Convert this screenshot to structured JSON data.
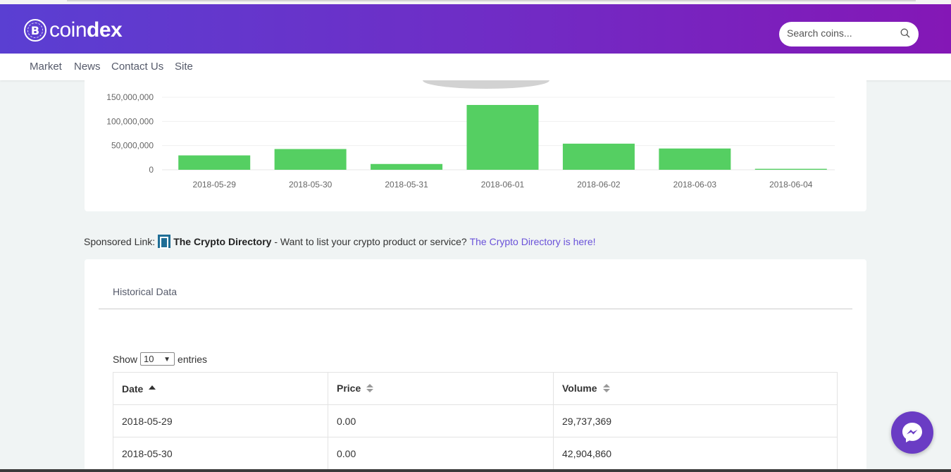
{
  "brand": {
    "logo_symbol": "B",
    "name_light": "coin",
    "name_bold": "dex"
  },
  "search": {
    "placeholder": "Search coins...",
    "icon": "search-icon"
  },
  "nav": {
    "items": [
      "Market",
      "News",
      "Contact Us",
      "Site"
    ]
  },
  "chart_data": {
    "type": "bar",
    "categories": [
      "2018-05-29",
      "2018-05-30",
      "2018-05-31",
      "2018-06-01",
      "2018-06-02",
      "2018-06-03",
      "2018-06-04"
    ],
    "values": [
      29737369,
      42904860,
      12000000,
      134000000,
      54000000,
      44000000,
      2000000
    ],
    "y_ticks": [
      0,
      50000000,
      100000000,
      150000000
    ],
    "y_tick_labels": [
      "0",
      "50,000,000",
      "100,000,000",
      "150,000,000"
    ],
    "ylim": [
      0,
      150000000
    ],
    "title": "",
    "xlabel": "",
    "ylabel": "",
    "bar_color": "#55cf62",
    "grid": true
  },
  "sponsor": {
    "prefix": "Sponsored Link:",
    "name": "The Crypto Directory",
    "text": "- Want to list your crypto product or service?",
    "link": "The Crypto Directory is here!"
  },
  "historical": {
    "title": "Historical Data",
    "show_label": "Show",
    "entries_value": "10",
    "entries_label": "entries",
    "columns": [
      "Date",
      "Price",
      "Volume"
    ],
    "rows": [
      [
        "2018-05-29",
        "0.00",
        "29,737,369"
      ],
      [
        "2018-05-30",
        "0.00",
        "42,904,860"
      ]
    ]
  },
  "colors": {
    "header_start": "#5a3fd2",
    "header_end": "#8417b6",
    "link": "#6a52d9",
    "messenger": "#6a3cc4"
  }
}
